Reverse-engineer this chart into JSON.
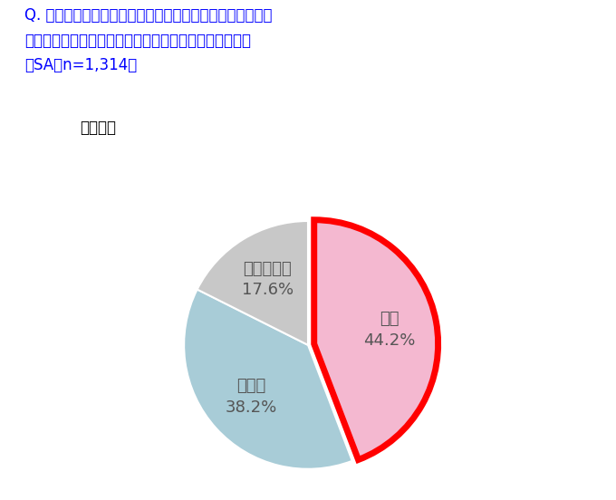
{
  "title_line1": "Q. 今現在、部活動を行う高校生を見て、その髪ルールなど",
  "title_line2": "に対しての疑問や理不尽さを感じることはありますか？",
  "title_line3": "（SA，n=1,314）",
  "subtitle": "【全体】",
  "labels": [
    "はい",
    "いいえ",
    "分からない"
  ],
  "values": [
    44.2,
    38.2,
    17.6
  ],
  "colors": [
    "#f4b8d0",
    "#a8ccd7",
    "#c8c8c8"
  ],
  "label_texts_line1": [
    "はい",
    "いいえ",
    "分からない"
  ],
  "label_texts_line2": [
    "44.2%",
    "38.2%",
    "17.6%"
  ],
  "explode": [
    0.05,
    0.0,
    0.0
  ],
  "highlight_wedge": 0,
  "highlight_color": "#ff0000",
  "highlight_linewidth": 5,
  "title_color": "#0000ff",
  "subtitle_color": "#000000",
  "label_color": "#555555",
  "background_color": "#ffffff",
  "title_fontsize": 12,
  "subtitle_fontsize": 12,
  "label_fontsize": 13,
  "start_angle": 90
}
